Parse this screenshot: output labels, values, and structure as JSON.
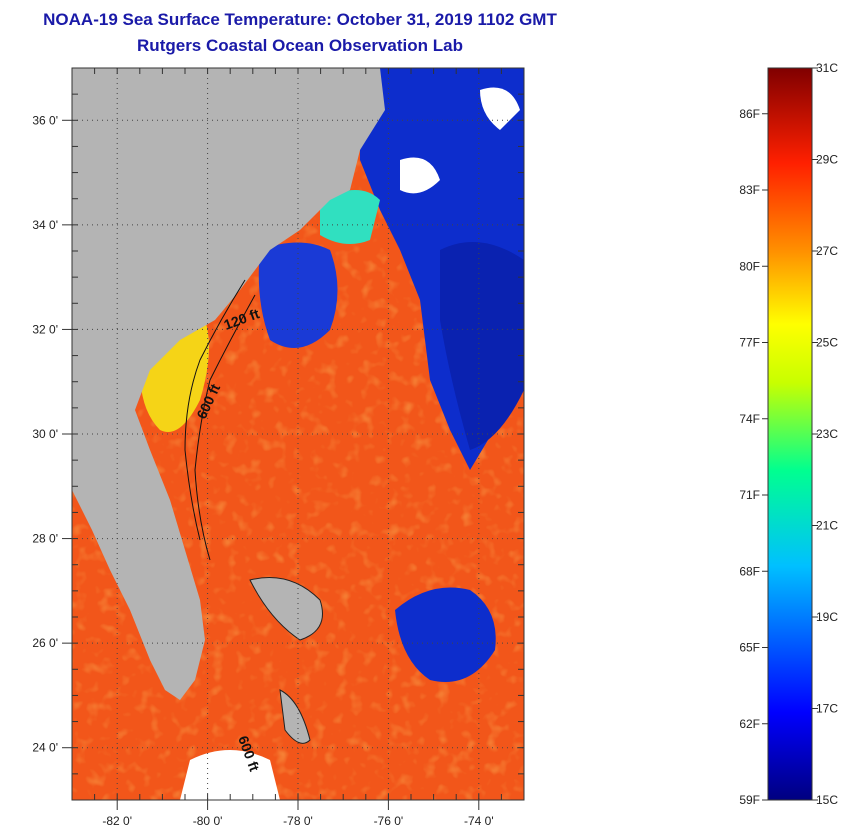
{
  "header": {
    "title": "NOAA-19 Sea Surface Temperature:  October 31, 2019 1102 GMT",
    "subtitle": "Rutgers Coastal Ocean Observation Lab"
  },
  "map": {
    "lon_range": [
      -83,
      -73
    ],
    "lat_range": [
      23,
      37
    ],
    "lat_ticks": [
      {
        "value": 36,
        "label": "36 0'"
      },
      {
        "value": 34,
        "label": "34 0'"
      },
      {
        "value": 32,
        "label": "32 0'"
      },
      {
        "value": 30,
        "label": "30 0'"
      },
      {
        "value": 28,
        "label": "28 0'"
      },
      {
        "value": 26,
        "label": "26 0'"
      },
      {
        "value": 24,
        "label": "24 0'"
      }
    ],
    "lon_ticks": [
      {
        "value": -82,
        "label": "-82 0'"
      },
      {
        "value": -80,
        "label": "-80 0'"
      },
      {
        "value": -78,
        "label": "-78 0'"
      },
      {
        "value": -76,
        "label": "-76 0'"
      },
      {
        "value": -74,
        "label": "-74 0'"
      }
    ],
    "contour_labels": [
      "120 ft",
      "600 ft",
      "600 ft"
    ],
    "colors": {
      "land": "#b4b4b4",
      "ocean_warm": "#f2561a",
      "ocean_cool": "#0d2dcc",
      "shelf": "#f5d417"
    }
  },
  "colorbar": {
    "celsius": [
      {
        "value": 31,
        "label": "31C"
      },
      {
        "value": 29,
        "label": "29C"
      },
      {
        "value": 27,
        "label": "27C"
      },
      {
        "value": 25,
        "label": "25C"
      },
      {
        "value": 23,
        "label": "23C"
      },
      {
        "value": 21,
        "label": "21C"
      },
      {
        "value": 19,
        "label": "19C"
      },
      {
        "value": 17,
        "label": "17C"
      },
      {
        "value": 15,
        "label": "15C"
      }
    ],
    "fahrenheit": [
      {
        "value": 86,
        "label": "86F"
      },
      {
        "value": 83,
        "label": "83F"
      },
      {
        "value": 80,
        "label": "80F"
      },
      {
        "value": 77,
        "label": "77F"
      },
      {
        "value": 74,
        "label": "74F"
      },
      {
        "value": 71,
        "label": "71F"
      },
      {
        "value": 68,
        "label": "68F"
      },
      {
        "value": 65,
        "label": "65F"
      },
      {
        "value": 62,
        "label": "62F"
      },
      {
        "value": 59,
        "label": "59F"
      }
    ]
  }
}
